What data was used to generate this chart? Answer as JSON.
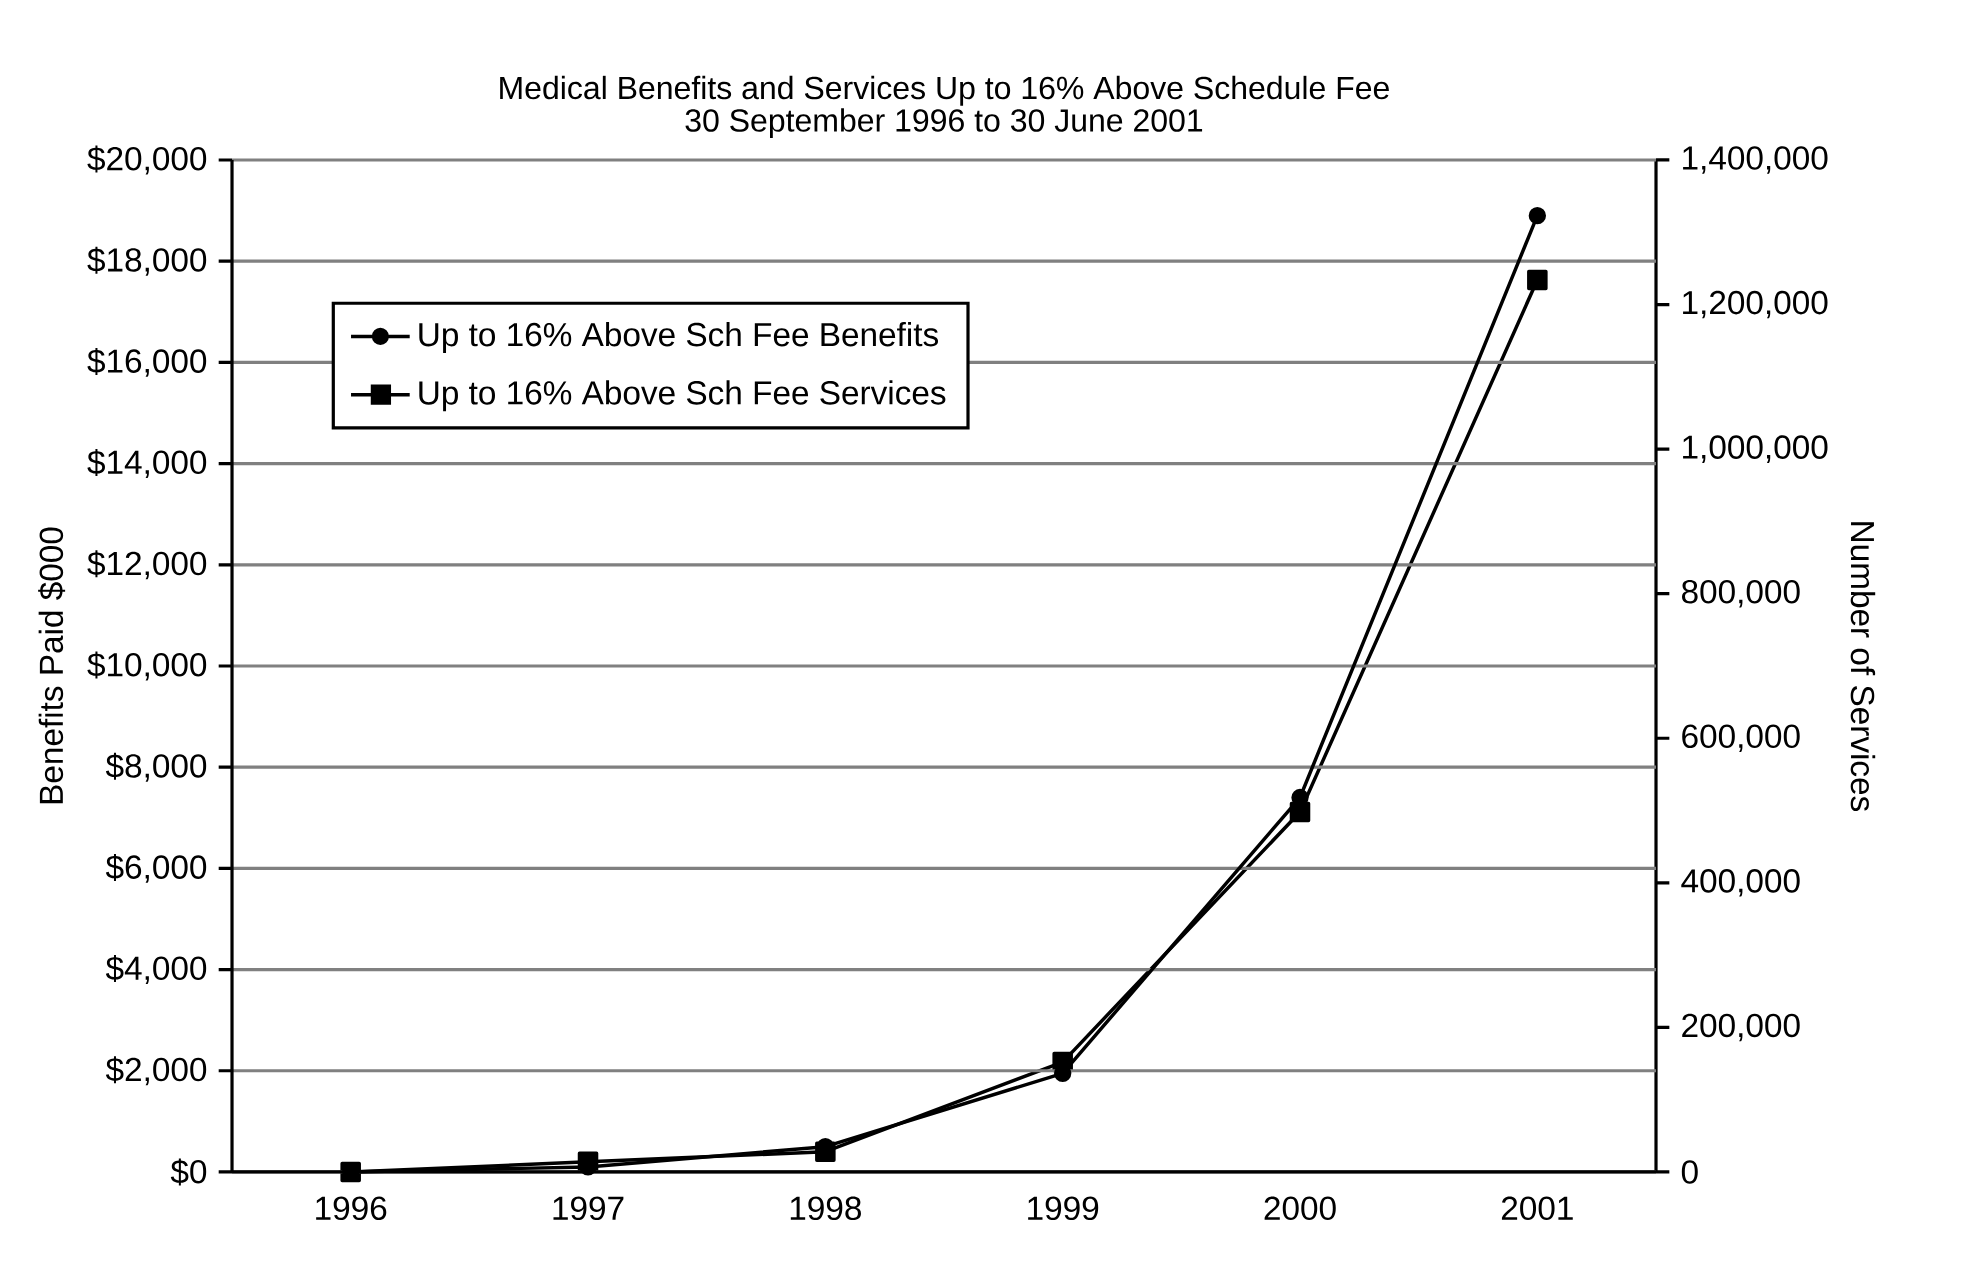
{
  "chart_data": {
    "type": "line",
    "title": "Medical Benefits and Services Up to 16% Above Schedule Fee",
    "subtitle": "30 September 1996 to 30 June 2001",
    "categories": [
      "1996",
      "1997",
      "1998",
      "1999",
      "2000",
      "2001"
    ],
    "ylabel": "Benefits Paid $000",
    "y2label": "Number of Services",
    "series": [
      {
        "name": "Up to 16% Above Sch Fee Benefits",
        "color": "#000000",
        "marker": "circle",
        "axis": "y",
        "values": [
          0,
          100,
          500,
          1950,
          7400,
          18900
        ]
      },
      {
        "name": "Up to 16% Above Sch Fee Services",
        "color": "#000000",
        "marker": "square",
        "axis": "y2",
        "values": [
          0,
          14000,
          28000,
          152000,
          498000,
          1234000
        ]
      }
    ],
    "ylim": [
      0,
      20000
    ],
    "yticks": [
      {
        "value": 0,
        "label": "$0"
      },
      {
        "value": 2000,
        "label": "$2,000"
      },
      {
        "value": 4000,
        "label": "$4,000"
      },
      {
        "value": 6000,
        "label": "$6,000"
      },
      {
        "value": 8000,
        "label": "$8,000"
      },
      {
        "value": 10000,
        "label": "$10,000"
      },
      {
        "value": 12000,
        "label": "$12,000"
      },
      {
        "value": 14000,
        "label": "$14,000"
      },
      {
        "value": 16000,
        "label": "$16,000"
      },
      {
        "value": 18000,
        "label": "$18,000"
      },
      {
        "value": 20000,
        "label": "$20,000"
      }
    ],
    "y2lim": [
      0,
      1400000
    ],
    "y2ticks": [
      0,
      {
        "value": 200000,
        "label": "200,000"
      },
      {
        "value": 400000,
        "label": "400,000"
      },
      {
        "value": 600000,
        "label": "600,000"
      },
      {
        "value": 800000,
        "label": "800,000"
      },
      {
        "value": 1000000,
        "label": "1,000,000"
      },
      {
        "value": 1200000,
        "label": "1,200,000"
      },
      {
        "value": 1400000,
        "label": "1,400,000"
      }
    ],
    "grid": "y",
    "legend": "top left",
    "line_style": "solid"
  }
}
